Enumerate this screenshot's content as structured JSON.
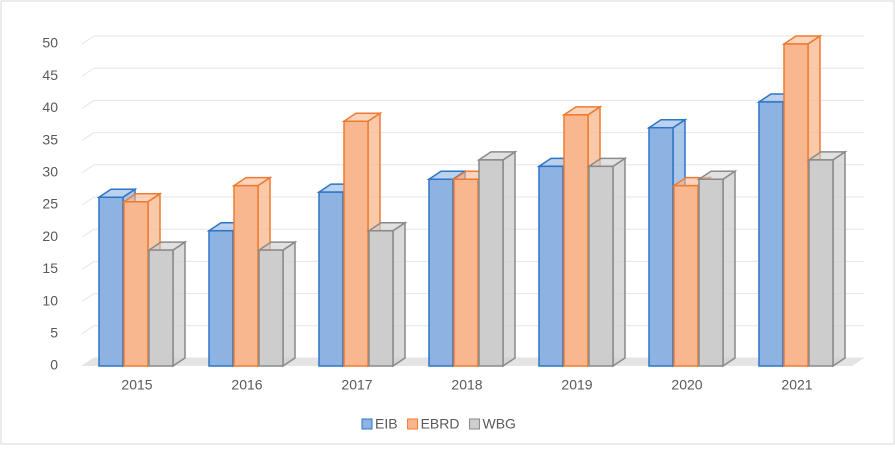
{
  "chart_data": {
    "type": "bar3d",
    "categories": [
      "2015",
      "2016",
      "2017",
      "2018",
      "2019",
      "2020",
      "2021"
    ],
    "series": [
      {
        "name": "EIB",
        "color": "#8db3e2",
        "edge": "#2e75c8",
        "values": [
          26.2,
          21,
          27,
          29,
          31,
          37,
          41
        ]
      },
      {
        "name": "EBRD",
        "color": "#f8b78e",
        "edge": "#f07a30",
        "values": [
          25.5,
          28,
          38,
          29,
          39,
          28,
          50
        ]
      },
      {
        "name": "WBG",
        "color": "#cdcdcd",
        "edge": "#8a8a8a",
        "values": [
          18,
          18,
          21,
          32,
          31,
          29,
          32
        ]
      }
    ],
    "ylim": [
      0,
      50
    ],
    "yticks": [
      0,
      5,
      10,
      15,
      20,
      25,
      30,
      35,
      40,
      45,
      50
    ],
    "grid": true,
    "legend": "bottom"
  }
}
